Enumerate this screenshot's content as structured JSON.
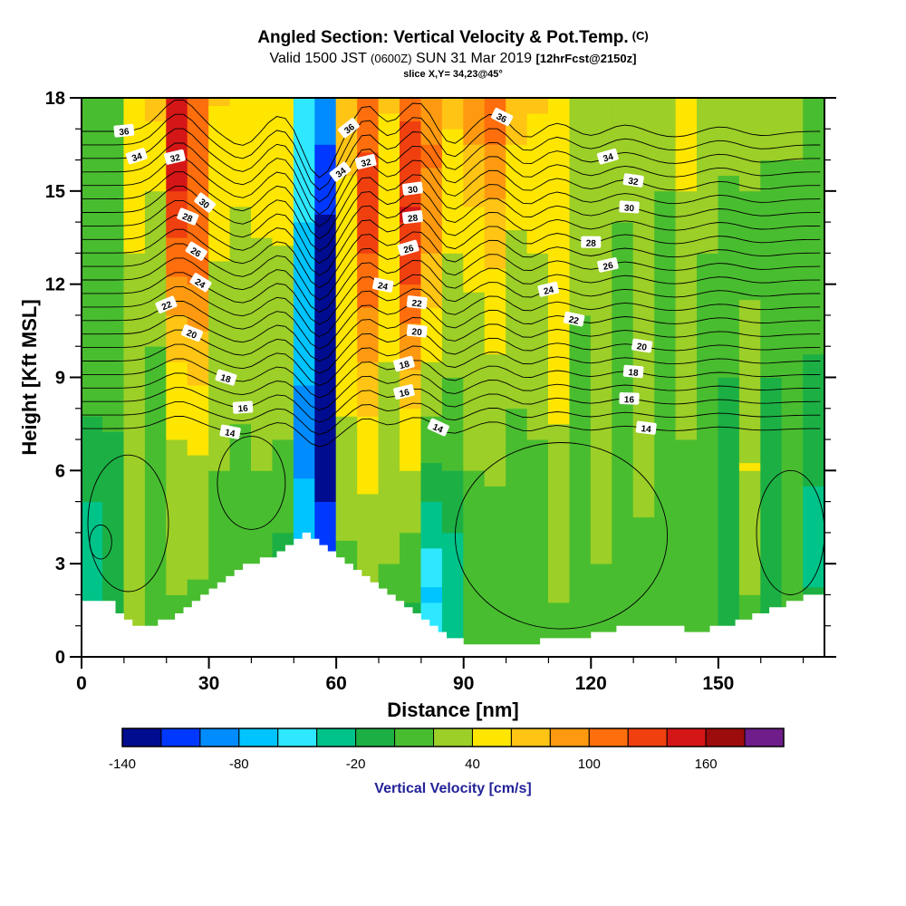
{
  "header": {
    "title_main": "Angled Section: Vertical Velocity & Pot.Temp.",
    "title_unit": "(C)",
    "valid_prefix": "Valid 1500 JST",
    "valid_small": "(0600Z)",
    "valid_date": "SUN 31 Mar 2019",
    "fcst_tag": "[12hrFcst@2150z]",
    "slice_line": "slice X,Y= 34,23@45°"
  },
  "chart_data": {
    "type": "heatmap",
    "title": "Angled Section: Vertical Velocity & Pot.Temp. (C)",
    "xlabel": "Distance [nm]",
    "ylabel": "Height [Kft MSL]",
    "x_range": [
      0,
      175
    ],
    "y_range": [
      0,
      18
    ],
    "x_ticks": [
      0,
      30,
      60,
      90,
      120,
      150
    ],
    "x_minor_step": 10,
    "y_ticks": [
      0,
      3,
      6,
      9,
      12,
      15,
      18
    ],
    "y_minor_step": 1,
    "fill_field": "vertical velocity [cm/s]",
    "contour_field": "potential temperature [C]",
    "colorbar": {
      "label": "Vertical Velocity [cm/s]",
      "label_color": "#222299",
      "min": -140,
      "step": 20,
      "tick_values": [
        -140,
        -80,
        -20,
        40,
        100,
        160
      ],
      "colors": [
        "#000c8f",
        "#0038ff",
        "#008cff",
        "#00c4ff",
        "#2ee8ff",
        "#00c389",
        "#1cb044",
        "#49bd30",
        "#9ccf27",
        "#ffe600",
        "#ffc414",
        "#ff9a10",
        "#ff6e0c",
        "#f0400f",
        "#d51616",
        "#9c0c0c",
        "#6f1d8a"
      ]
    },
    "field_bands": [
      {
        "x": [
          0,
          5
        ],
        "v": [
          -25,
          -30,
          -28,
          -12,
          2,
          6,
          8,
          8,
          6,
          5
        ]
      },
      {
        "x": [
          5,
          10
        ],
        "v": [
          -12,
          -18,
          -15,
          -6,
          4,
          8,
          10,
          10,
          8,
          6
        ]
      },
      {
        "x": [
          10,
          15
        ],
        "v": [
          24,
          28,
          30,
          30,
          32,
          34,
          38,
          42,
          48,
          55
        ]
      },
      {
        "x": [
          15,
          20
        ],
        "v": [
          10,
          12,
          12,
          14,
          16,
          20,
          26,
          34,
          48,
          70
        ]
      },
      {
        "x": [
          20,
          25
        ],
        "v": [
          14,
          20,
          26,
          34,
          46,
          66,
          96,
          132,
          152,
          142
        ]
      },
      {
        "x": [
          25,
          30
        ],
        "v": [
          12,
          18,
          26,
          36,
          52,
          76,
          102,
          112,
          102,
          112
        ]
      },
      {
        "x": [
          30,
          35
        ],
        "v": [
          6,
          10,
          15,
          20,
          26,
          32,
          38,
          44,
          52,
          62
        ]
      },
      {
        "x": [
          35,
          40
        ],
        "v": [
          2,
          6,
          10,
          16,
          22,
          27,
          32,
          38,
          46,
          56
        ]
      },
      {
        "x": [
          40,
          45
        ],
        "v": [
          -4,
          2,
          10,
          20,
          26,
          31,
          36,
          42,
          50,
          60
        ]
      },
      {
        "x": [
          45,
          50
        ],
        "v": [
          -42,
          -18,
          2,
          16,
          26,
          32,
          37,
          42,
          47,
          52
        ]
      },
      {
        "x": [
          50,
          55
        ],
        "v": [
          -45,
          -62,
          -72,
          -82,
          -82,
          -76,
          -70,
          -60,
          -50,
          -40
        ]
      },
      {
        "x": [
          55,
          60
        ],
        "v": [
          -60,
          -92,
          -112,
          -132,
          -146,
          -152,
          -142,
          -122,
          -102,
          -88
        ]
      },
      {
        "x": [
          60,
          65
        ],
        "v": [
          2,
          12,
          22,
          32,
          42,
          46,
          52,
          56,
          62,
          66
        ]
      },
      {
        "x": [
          65,
          70
        ],
        "v": [
          10,
          20,
          32,
          46,
          62,
          86,
          112,
          132,
          122,
          102
        ]
      },
      {
        "x": [
          70,
          75
        ],
        "v": [
          6,
          16,
          26,
          32,
          36,
          42,
          46,
          52,
          56,
          62
        ]
      },
      {
        "x": [
          75,
          80
        ],
        "v": [
          -8,
          2,
          22,
          42,
          62,
          92,
          122,
          142,
          132,
          112
        ]
      },
      {
        "x": [
          80,
          85
        ],
        "v": [
          -52,
          -62,
          -32,
          -2,
          26,
          46,
          72,
          92,
          102,
          92
        ]
      },
      {
        "x": [
          85,
          90
        ],
        "v": [
          -28,
          -38,
          -18,
          2,
          16,
          26,
          36,
          46,
          56,
          66
        ]
      },
      {
        "x": [
          90,
          95
        ],
        "v": [
          2,
          6,
          12,
          20,
          26,
          32,
          42,
          56,
          76,
          96
        ]
      },
      {
        "x": [
          95,
          100
        ],
        "v": [
          6,
          10,
          16,
          22,
          32,
          42,
          56,
          72,
          96,
          116
        ]
      },
      {
        "x": [
          100,
          105
        ],
        "v": [
          2,
          6,
          10,
          16,
          20,
          26,
          32,
          42,
          56,
          72
        ]
      },
      {
        "x": [
          105,
          110
        ],
        "v": [
          6,
          8,
          12,
          18,
          22,
          28,
          36,
          46,
          56,
          62
        ]
      },
      {
        "x": [
          110,
          115
        ],
        "v": [
          12,
          22,
          32,
          36,
          42,
          46,
          52,
          56,
          52,
          46
        ]
      },
      {
        "x": [
          115,
          120
        ],
        "v": [
          4,
          8,
          10,
          12,
          16,
          18,
          22,
          28,
          32,
          36
        ]
      },
      {
        "x": [
          120,
          125
        ],
        "v": [
          8,
          16,
          26,
          30,
          30,
          28,
          26,
          28,
          30,
          32
        ]
      },
      {
        "x": [
          125,
          130
        ],
        "v": [
          2,
          5,
          8,
          10,
          12,
          15,
          18,
          20,
          24,
          28
        ]
      },
      {
        "x": [
          130,
          135
        ],
        "v": [
          5,
          10,
          18,
          26,
          28,
          26,
          22,
          20,
          22,
          26
        ]
      },
      {
        "x": [
          135,
          140
        ],
        "v": [
          0,
          5,
          8,
          10,
          12,
          14,
          16,
          18,
          22,
          26
        ]
      },
      {
        "x": [
          140,
          145
        ],
        "v": [
          5,
          8,
          12,
          18,
          22,
          26,
          28,
          36,
          46,
          56
        ]
      },
      {
        "x": [
          145,
          150
        ],
        "v": [
          0,
          3,
          6,
          10,
          12,
          15,
          18,
          22,
          28,
          35
        ]
      },
      {
        "x": [
          150,
          155
        ],
        "v": [
          -5,
          -12,
          -18,
          -14,
          -4,
          6,
          10,
          16,
          22,
          28
        ]
      },
      {
        "x": [
          155,
          160
        ],
        "v": [
          8,
          20,
          34,
          40,
          34,
          24,
          18,
          18,
          22,
          26
        ]
      },
      {
        "x": [
          160,
          165
        ],
        "v": [
          -10,
          -16,
          -20,
          -15,
          -5,
          5,
          10,
          15,
          20,
          24
        ]
      },
      {
        "x": [
          165,
          170
        ],
        "v": [
          0,
          5,
          8,
          10,
          12,
          14,
          16,
          18,
          20,
          22
        ]
      },
      {
        "x": [
          170,
          175
        ],
        "v": [
          -14,
          -20,
          -24,
          -18,
          -8,
          2,
          8,
          12,
          16,
          20
        ]
      }
    ],
    "terrain_profile": [
      [
        0,
        1.9
      ],
      [
        6,
        1.9
      ],
      [
        9,
        1.2
      ],
      [
        13,
        0.9
      ],
      [
        17,
        1.1
      ],
      [
        21,
        1.3
      ],
      [
        25,
        1.6
      ],
      [
        29,
        2.1
      ],
      [
        33,
        2.5
      ],
      [
        37,
        2.9
      ],
      [
        41,
        3.1
      ],
      [
        45,
        3.3
      ],
      [
        49,
        3.6
      ],
      [
        52,
        3.9
      ],
      [
        55,
        3.7
      ],
      [
        58,
        3.4
      ],
      [
        62,
        3.0
      ],
      [
        66,
        2.6
      ],
      [
        70,
        2.2
      ],
      [
        74,
        1.8
      ],
      [
        78,
        1.4
      ],
      [
        82,
        1.0
      ],
      [
        86,
        0.7
      ],
      [
        90,
        0.45
      ],
      [
        96,
        0.35
      ],
      [
        102,
        0.4
      ],
      [
        108,
        0.5
      ],
      [
        114,
        0.6
      ],
      [
        120,
        0.75
      ],
      [
        126,
        0.9
      ],
      [
        132,
        1.0
      ],
      [
        138,
        0.95
      ],
      [
        144,
        0.85
      ],
      [
        150,
        0.95
      ],
      [
        156,
        1.2
      ],
      [
        162,
        1.5
      ],
      [
        167,
        1.8
      ],
      [
        172,
        2.0
      ],
      [
        175,
        2.0
      ]
    ],
    "isentropes": {
      "levels_min": 14,
      "levels_max": 36,
      "base_height_kft": 7.35,
      "spacing_kft_per_C": 0.435,
      "amp0": 0.35,
      "amp_per_kft": 0.06,
      "bumps": [
        [
          23,
          6,
          1.1
        ],
        [
          38,
          5,
          -0.5
        ],
        [
          47,
          5,
          0.6
        ],
        [
          56,
          5,
          -1.6
        ],
        [
          67,
          4,
          0.9
        ],
        [
          79,
          5,
          1.0
        ],
        [
          87,
          4,
          -0.5
        ],
        [
          97,
          5,
          0.6
        ],
        [
          105,
          4,
          -0.3
        ],
        [
          112,
          5,
          0.3
        ],
        [
          120,
          5,
          -0.2
        ],
        [
          128,
          6,
          0.25
        ],
        [
          140,
          8,
          -0.2
        ],
        [
          150,
          6,
          0.2
        ],
        [
          160,
          6,
          -0.15
        ]
      ],
      "labeled_levels": [
        {
          "v": 36,
          "x": [
            10,
            63,
            99
          ]
        },
        {
          "v": 34,
          "x": [
            13,
            61,
            124
          ]
        },
        {
          "v": 32,
          "x": [
            22,
            67,
            130
          ]
        },
        {
          "v": 30,
          "x": [
            29,
            78,
            129
          ]
        },
        {
          "v": 28,
          "x": [
            25,
            78,
            120
          ]
        },
        {
          "v": 26,
          "x": [
            27,
            77,
            124
          ]
        },
        {
          "v": 24,
          "x": [
            28,
            71,
            110
          ]
        },
        {
          "v": 22,
          "x": [
            20,
            79,
            116
          ]
        },
        {
          "v": 20,
          "x": [
            26,
            79,
            132
          ]
        },
        {
          "v": 18,
          "x": [
            34,
            76,
            130
          ]
        },
        {
          "v": 16,
          "x": [
            38,
            76,
            129
          ]
        },
        {
          "v": 14,
          "x": [
            35,
            84,
            133
          ]
        }
      ],
      "loops": [
        [
          11,
          4.3,
          9.5,
          2.2
        ],
        [
          4.5,
          3.7,
          2.6,
          0.55
        ],
        [
          40,
          5.6,
          8,
          1.5
        ],
        [
          113,
          3.9,
          25,
          3.0
        ],
        [
          167,
          4.0,
          8,
          2.0
        ]
      ]
    }
  }
}
